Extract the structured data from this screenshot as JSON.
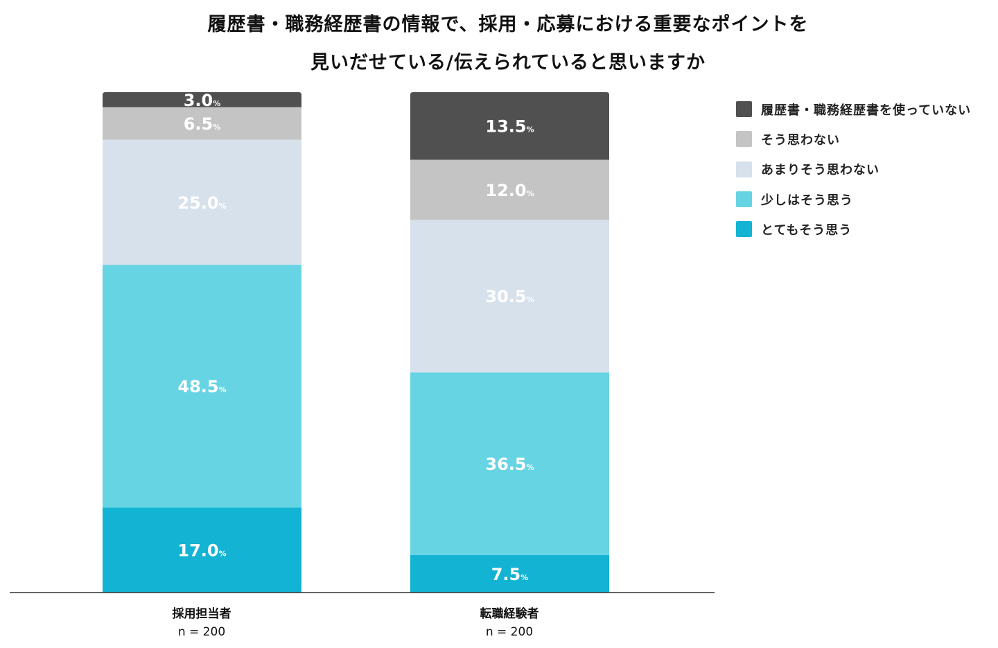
{
  "chart_data": {
    "type": "bar",
    "stacked": true,
    "title": [
      "履歴書・職務経歴書の情報で、採用・応募における重要なポイントを",
      "見いだせている/伝えられていると思いますか"
    ],
    "categories": [
      "採用担当者",
      "転職経験者"
    ],
    "sample_sizes": [
      "n = 200",
      "n = 200"
    ],
    "unit": "%",
    "ylim": [
      0,
      100
    ],
    "legend_position": "right",
    "series": [
      {
        "name": "とてもそう思う",
        "color": "#12b3d3",
        "values": [
          17.0,
          7.5
        ]
      },
      {
        "name": "少しはそう思う",
        "color": "#66d4e3",
        "values": [
          48.5,
          36.5
        ]
      },
      {
        "name": "あまりそう思わない",
        "color": "#d6e1ec",
        "values": [
          25.0,
          30.5
        ]
      },
      {
        "name": "そう思わない",
        "color": "#c4c4c4",
        "values": [
          6.5,
          12.0
        ]
      },
      {
        "name": "履歴書・職務経歴書を使っていない",
        "color": "#505050",
        "values": [
          3.0,
          13.5
        ]
      }
    ]
  }
}
